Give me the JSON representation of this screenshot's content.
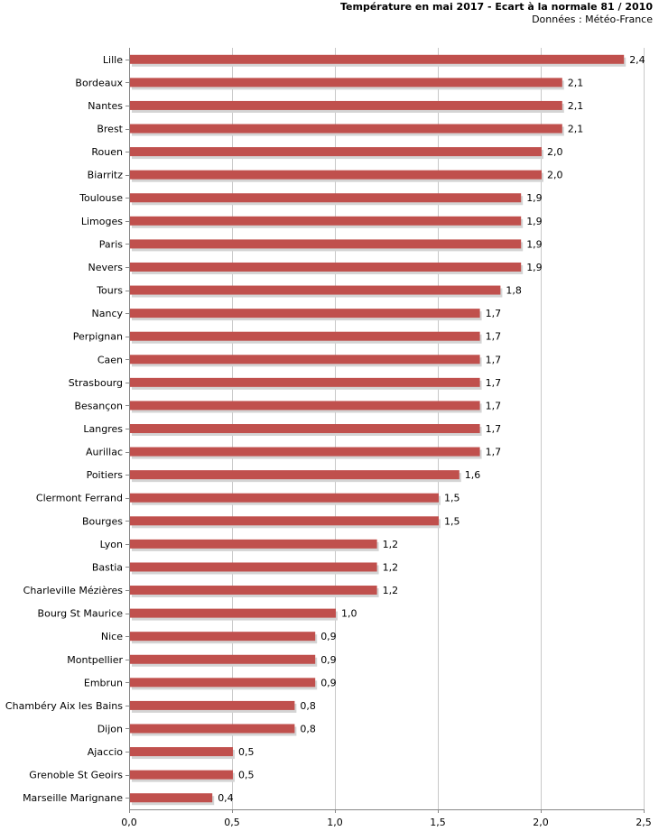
{
  "chart_data": {
    "type": "bar",
    "orientation": "horizontal",
    "title": "Température en mai 2017 - Ecart à la normale 81 / 2010",
    "subtitle": "Données : Météo-France",
    "xlabel": "",
    "ylabel": "",
    "xlim": [
      0,
      2.5
    ],
    "xticks": [
      "0,0",
      "0,5",
      "1,0",
      "1,5",
      "2,0",
      "2,5"
    ],
    "xtick_values": [
      0,
      0.5,
      1.0,
      1.5,
      2.0,
      2.5
    ],
    "grid": "vertical",
    "bar_color": "#c0504d",
    "categories": [
      "Lille",
      "Bordeaux",
      "Nantes",
      "Brest",
      "Rouen",
      "Biarritz",
      "Toulouse",
      "Limoges",
      "Paris",
      "Nevers",
      "Tours",
      "Nancy",
      "Perpignan",
      "Caen",
      "Strasbourg",
      "Besançon",
      "Langres",
      "Aurillac",
      "Poitiers",
      "Clermont Ferrand",
      "Bourges",
      "Lyon",
      "Bastia",
      "Charleville Mézières",
      "Bourg St Maurice",
      "Nice",
      "Montpellier",
      "Embrun",
      "Chambéry Aix les Bains",
      "Dijon",
      "Ajaccio",
      "Grenoble St Geoirs",
      "Marseille Marignane"
    ],
    "values": [
      2.4,
      2.1,
      2.1,
      2.1,
      2.0,
      2.0,
      1.9,
      1.9,
      1.9,
      1.9,
      1.8,
      1.7,
      1.7,
      1.7,
      1.7,
      1.7,
      1.7,
      1.7,
      1.6,
      1.5,
      1.5,
      1.2,
      1.2,
      1.2,
      1.0,
      0.9,
      0.9,
      0.9,
      0.8,
      0.8,
      0.5,
      0.5,
      0.4
    ],
    "value_labels": [
      "2,4",
      "2,1",
      "2,1",
      "2,1",
      "2,0",
      "2,0",
      "1,9",
      "1,9",
      "1,9",
      "1,9",
      "1,8",
      "1,7",
      "1,7",
      "1,7",
      "1,7",
      "1,7",
      "1,7",
      "1,7",
      "1,6",
      "1,5",
      "1,5",
      "1,2",
      "1,2",
      "1,2",
      "1,0",
      "0,9",
      "0,9",
      "0,9",
      "0,8",
      "0,8",
      "0,5",
      "0,5",
      "0,4"
    ]
  }
}
